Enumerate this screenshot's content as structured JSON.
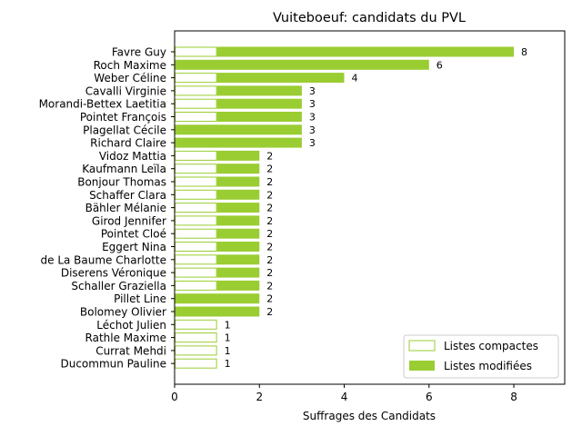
{
  "chart_data": {
    "type": "bar",
    "orientation": "horizontal",
    "stacked": true,
    "title": "Vuiteboeuf: candidats du PVL",
    "xlabel": "Suffrages des Candidats",
    "ylabel": "",
    "xlim": [
      0,
      9.2
    ],
    "xticks": [
      0,
      2,
      4,
      6,
      8
    ],
    "grid": false,
    "legend_position": "bottom-right",
    "colors": {
      "modifiees": "#9acd32",
      "compactes_edge": "#9acd32",
      "compactes_fill": "#ffffff"
    },
    "categories": [
      "Favre Guy",
      "Roch Maxime",
      "Weber Céline",
      "Cavalli Virginie",
      "Morandi-Bettex Laetitia",
      "Pointet François",
      "Plagellat Cécile",
      "Richard Claire",
      "Vidoz Mattia",
      "Kaufmann Leïla",
      "Bonjour Thomas",
      "Schaffer Clara",
      "Bähler Mélanie",
      "Girod Jennifer",
      "Pointet Cloé",
      "Eggert Nina",
      "de La Baume Charlotte",
      "Diserens Véronique",
      "Schaller Graziella",
      "Pillet Line",
      "Bolomey Olivier",
      "Léchot Julien",
      "Rathle Maxime",
      "Currat Mehdi",
      "Ducommun Pauline"
    ],
    "series": [
      {
        "name": "Listes compactes",
        "values": [
          1,
          0,
          1,
          1,
          1,
          1,
          0,
          0,
          1,
          1,
          1,
          1,
          1,
          1,
          1,
          1,
          1,
          1,
          1,
          0,
          0,
          1,
          1,
          1,
          1
        ]
      },
      {
        "name": "Listes modifiées",
        "values": [
          7,
          6,
          3,
          2,
          2,
          2,
          3,
          3,
          1,
          1,
          1,
          1,
          1,
          1,
          1,
          1,
          1,
          1,
          1,
          2,
          2,
          0,
          0,
          0,
          0
        ]
      }
    ],
    "totals": [
      "8",
      "6",
      "4",
      "3",
      "3",
      "3",
      "3",
      "3",
      "2",
      "2",
      "2",
      "2",
      "2",
      "2",
      "2",
      "2",
      "2",
      "2",
      "2",
      "2",
      "2",
      "1",
      "1",
      "1",
      "1"
    ]
  }
}
